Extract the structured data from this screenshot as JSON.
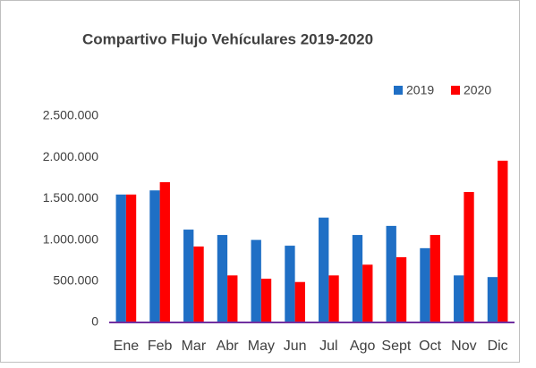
{
  "chart_data": {
    "type": "bar",
    "title": "Compartivo Flujo Vehículares 2019-2020",
    "categories": [
      "Ene",
      "Feb",
      "Mar",
      "Abr",
      "May",
      "Jun",
      "Jul",
      "Ago",
      "Sept",
      "Oct",
      "Nov",
      "Dic"
    ],
    "series": [
      {
        "name": "2019",
        "color": "#1f6fc5",
        "values": [
          1550000,
          1600000,
          1125000,
          1060000,
          1000000,
          930000,
          1270000,
          1060000,
          1170000,
          900000,
          570000,
          550000
        ]
      },
      {
        "name": "2020",
        "color": "#ff0000",
        "values": [
          1550000,
          1700000,
          920000,
          570000,
          530000,
          490000,
          570000,
          700000,
          790000,
          1060000,
          1580000,
          1960000
        ]
      }
    ],
    "ylim": [
      0,
      2500000
    ],
    "yticks": [
      0,
      {
        "value": 500000,
        "label": "500.000"
      },
      {
        "value": 1000000,
        "label": "1.000.000"
      },
      {
        "value": 1500000,
        "label": "1.500.000"
      },
      {
        "value": 2000000,
        "label": "2.000.000"
      },
      {
        "value": 2500000,
        "label": "2.500.000"
      }
    ],
    "grid": false,
    "legend": "top-right"
  }
}
